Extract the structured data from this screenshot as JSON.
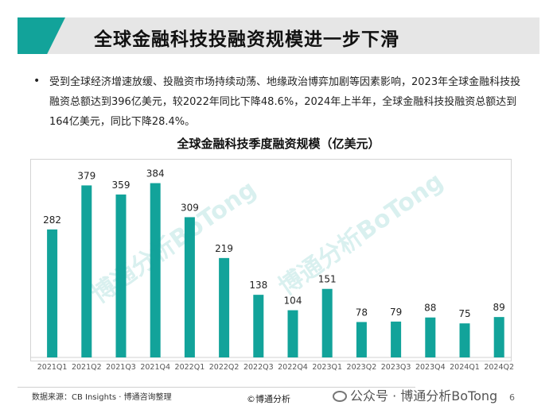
{
  "header": {
    "title": "全球金融科技投融资规模进一步下滑"
  },
  "summary": {
    "bullet": "•",
    "text": "受到全球经济增速放缓、投融资市场持续动荡、地缘政治博弈加剧等因素影响，2023年全球金融科技投融资总额达到396亿美元，较2022年同比下降48.6%，2024年上半年，全球金融科技投融资总额达到164亿美元，同比下降28.4%。"
  },
  "chart_data": {
    "type": "bar",
    "title": "全球金融科技季度融资规模（亿美元）",
    "categories": [
      "2021Q1",
      "2021Q2",
      "2021Q3",
      "2021Q4",
      "2022Q1",
      "2022Q2",
      "2022Q3",
      "2022Q4",
      "2023Q1",
      "2023Q2",
      "2023Q3",
      "2023Q4",
      "2024Q1",
      "2024Q2"
    ],
    "values": [
      282,
      379,
      359,
      384,
      309,
      219,
      138,
      104,
      151,
      78,
      79,
      88,
      75,
      89
    ],
    "xlabel": "",
    "ylabel": "",
    "ylim": [
      0,
      420
    ],
    "grid": false,
    "color": "#12a39a"
  },
  "watermarks": [
    "博通分析BoTong",
    "博通分析BoTong"
  ],
  "footer": {
    "source": "数据来源：CB Insights · 博通咨询整理",
    "copyright": "©博通分析",
    "wechat": "公众号 · 博通分析BoTong",
    "page": "6"
  }
}
